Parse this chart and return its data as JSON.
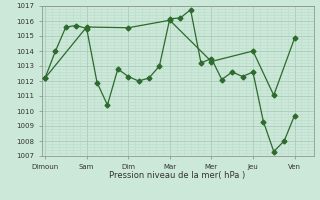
{
  "background_color": "#cce8d8",
  "grid_major_color": "#aaccbb",
  "grid_minor_color": "#bbddcc",
  "line_color": "#2d6a2d",
  "xlabel": "Pression niveau de la mer( hPa )",
  "xtick_labels": [
    "Dimoun",
    "Sam",
    "Dim",
    "Mar",
    "Mer",
    "Jeu",
    "Ven"
  ],
  "xtick_positions": [
    0,
    24,
    48,
    72,
    96,
    120,
    144
  ],
  "xlim": [
    -2,
    155
  ],
  "ylim": [
    1007,
    1017
  ],
  "yticks": [
    1007,
    1008,
    1009,
    1010,
    1011,
    1012,
    1013,
    1014,
    1015,
    1016,
    1017
  ],
  "series1_x": [
    0,
    6,
    12,
    18,
    24,
    30,
    36,
    42,
    48,
    54,
    60,
    66,
    72,
    78,
    84,
    90,
    96,
    102,
    108,
    114,
    120,
    126,
    132,
    138,
    144
  ],
  "series1_y": [
    1012.2,
    1014.0,
    1015.6,
    1015.7,
    1015.5,
    1011.9,
    1010.4,
    1012.8,
    1012.3,
    1012.0,
    1012.2,
    1013.0,
    1016.15,
    1016.2,
    1016.75,
    1013.2,
    1013.5,
    1012.1,
    1012.6,
    1012.3,
    1012.6,
    1009.3,
    1007.3,
    1008.0,
    1009.7
  ],
  "series2_x": [
    0,
    24,
    48,
    72,
    96,
    120,
    132,
    144
  ],
  "series2_y": [
    1012.2,
    1015.6,
    1015.55,
    1016.05,
    1013.3,
    1014.0,
    1011.05,
    1014.85
  ],
  "marker_size": 2.5,
  "line_width": 0.9
}
